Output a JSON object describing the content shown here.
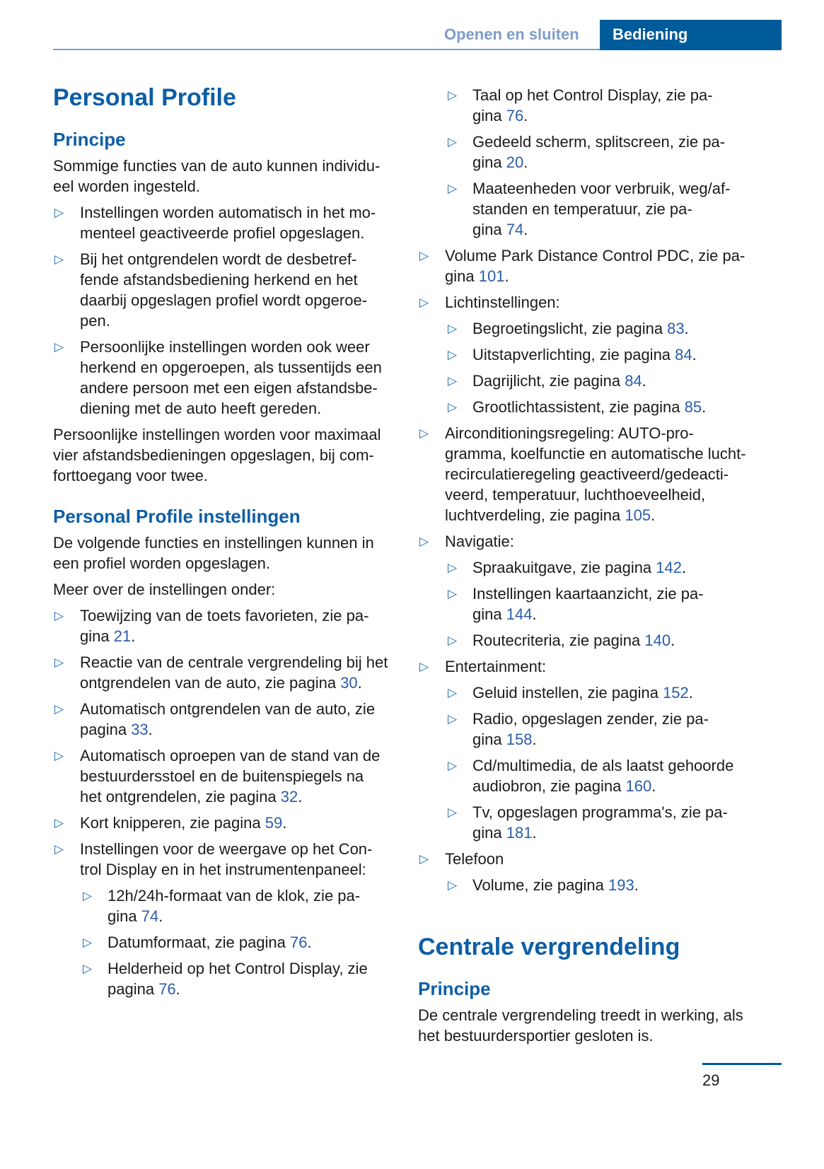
{
  "header": {
    "prev_section": "Openen en sluiten",
    "current_section": "Bediening"
  },
  "page_number": "29",
  "colors": {
    "heading": "#0d5ea6",
    "tab": "#005b9a",
    "link": "#2a5caa",
    "tab_inactive_text": "#7e9cc6"
  },
  "bullet_icon": "triangle-right-outline",
  "left": [
    {
      "type": "h1",
      "lines": [
        "Personal Profile"
      ]
    },
    {
      "type": "h2",
      "lines": [
        "Principe"
      ]
    },
    {
      "type": "p",
      "lines": [
        "Sommige functies van de auto kunnen individu-",
        "eel worden ingesteld."
      ]
    },
    {
      "type": "li",
      "lines": [
        "Instellingen worden automatisch in het mo-",
        "menteel geactiveerde profiel opgeslagen."
      ]
    },
    {
      "type": "li",
      "lines": [
        "Bij het ontgrendelen wordt de desbetref-",
        "fende afstandsbediening herkend en het",
        "daarbij opgeslagen profiel wordt opgeroe-",
        "pen."
      ]
    },
    {
      "type": "li",
      "lines": [
        "Persoonlijke instellingen worden ook weer",
        "herkend en opgeroepen, als tussentijds een",
        "andere persoon met een eigen afstandsbe-",
        "diening met de auto heeft gereden."
      ]
    },
    {
      "type": "p",
      "lines": [
        "Persoonlijke instellingen worden voor maximaal",
        "vier afstandsbedieningen opgeslagen, bij com-",
        "forttoegang voor twee."
      ]
    },
    {
      "type": "h2",
      "lines": [
        "Personal Profile instellingen"
      ]
    },
    {
      "type": "p",
      "lines": [
        "De volgende functies en instellingen kunnen in",
        "een profiel worden opgeslagen."
      ]
    },
    {
      "type": "p",
      "lines": [
        "Meer over de instellingen onder:"
      ]
    },
    {
      "type": "li",
      "lines": [
        "Toewijzing van de toets favorieten, zie pa-",
        "gina "
      ],
      "page": "21"
    },
    {
      "type": "li",
      "lines": [
        "Reactie van de centrale vergrendeling bij het",
        "ontgrendelen van de auto, zie pagina "
      ],
      "page": "30"
    },
    {
      "type": "li",
      "lines": [
        "Automatisch ontgrendelen van de auto, zie",
        "pagina "
      ],
      "page": "33"
    },
    {
      "type": "li",
      "lines": [
        "Automatisch oproepen van de stand van de",
        "bestuurdersstoel en de buitenspiegels na",
        "het ontgrendelen, zie pagina "
      ],
      "page": "32"
    },
    {
      "type": "li",
      "lines": [
        "Kort knipperen, zie pagina "
      ],
      "page": "59"
    },
    {
      "type": "li",
      "lines": [
        "Instellingen voor de weergave op het Con-",
        "trol Display en in het instrumentenpaneel:"
      ]
    },
    {
      "type": "li2",
      "lines": [
        "12h/24h-formaat van de klok, zie pa-",
        "gina "
      ],
      "page": "74"
    },
    {
      "type": "li2",
      "lines": [
        "Datumformaat, zie pagina "
      ],
      "page": "76"
    },
    {
      "type": "li2",
      "lines": [
        "Helderheid op het Control Display, zie",
        "pagina "
      ],
      "page": "76"
    }
  ],
  "right": [
    {
      "type": "li2",
      "lines": [
        "Taal op het Control Display, zie pa-",
        "gina "
      ],
      "page": "76"
    },
    {
      "type": "li2",
      "lines": [
        "Gedeeld scherm, splitscreen, zie pa-",
        "gina "
      ],
      "page": "20"
    },
    {
      "type": "li2",
      "lines": [
        "Maateenheden voor verbruik, weg/af-",
        "standen en temperatuur, zie pa-",
        "gina "
      ],
      "page": "74"
    },
    {
      "type": "li",
      "lines": [
        "Volume Park Distance Control PDC, zie pa-",
        "gina "
      ],
      "page": "101"
    },
    {
      "type": "li",
      "lines": [
        "Lichtinstellingen:"
      ]
    },
    {
      "type": "li2",
      "lines": [
        "Begroetingslicht, zie pagina "
      ],
      "page": "83"
    },
    {
      "type": "li2",
      "lines": [
        "Uitstapverlichting, zie pagina "
      ],
      "page": "84"
    },
    {
      "type": "li2",
      "lines": [
        "Dagrijlicht, zie pagina "
      ],
      "page": "84"
    },
    {
      "type": "li2",
      "lines": [
        "Grootlichtassistent, zie pagina "
      ],
      "page": "85"
    },
    {
      "type": "li",
      "lines": [
        "Airconditioningsregeling: AUTO-pro-",
        "gramma, koelfunctie en automatische lucht-",
        "recirculatieregeling geactiveerd/gedeacti-",
        "veerd, temperatuur, luchthoeveelheid,",
        "luchtverdeling, zie pagina "
      ],
      "page": "105"
    },
    {
      "type": "li",
      "lines": [
        "Navigatie:"
      ]
    },
    {
      "type": "li2",
      "lines": [
        "Spraakuitgave, zie pagina "
      ],
      "page": "142"
    },
    {
      "type": "li2",
      "lines": [
        "Instellingen kaartaanzicht, zie pa-",
        "gina "
      ],
      "page": "144"
    },
    {
      "type": "li2",
      "lines": [
        "Routecriteria, zie pagina "
      ],
      "page": "140"
    },
    {
      "type": "li",
      "lines": [
        "Entertainment:"
      ]
    },
    {
      "type": "li2",
      "lines": [
        "Geluid instellen, zie pagina "
      ],
      "page": "152"
    },
    {
      "type": "li2",
      "lines": [
        "Radio, opgeslagen zender, zie pa-",
        "gina "
      ],
      "page": "158"
    },
    {
      "type": "li2",
      "lines": [
        "Cd/multimedia, de als laatst gehoorde",
        "audiobron, zie pagina "
      ],
      "page": "160"
    },
    {
      "type": "li2",
      "lines": [
        "Tv, opgeslagen programma's, zie pa-",
        "gina "
      ],
      "page": "181"
    },
    {
      "type": "li",
      "lines": [
        "Telefoon"
      ]
    },
    {
      "type": "li2",
      "lines": [
        "Volume, zie pagina "
      ],
      "page": "193"
    },
    {
      "type": "h1",
      "lines": [
        "Centrale vergrendeling"
      ]
    },
    {
      "type": "h2",
      "lines": [
        "Principe"
      ]
    },
    {
      "type": "p",
      "lines": [
        "De centrale vergrendeling treedt in werking, als",
        "het bestuurdersportier gesloten is."
      ]
    }
  ]
}
